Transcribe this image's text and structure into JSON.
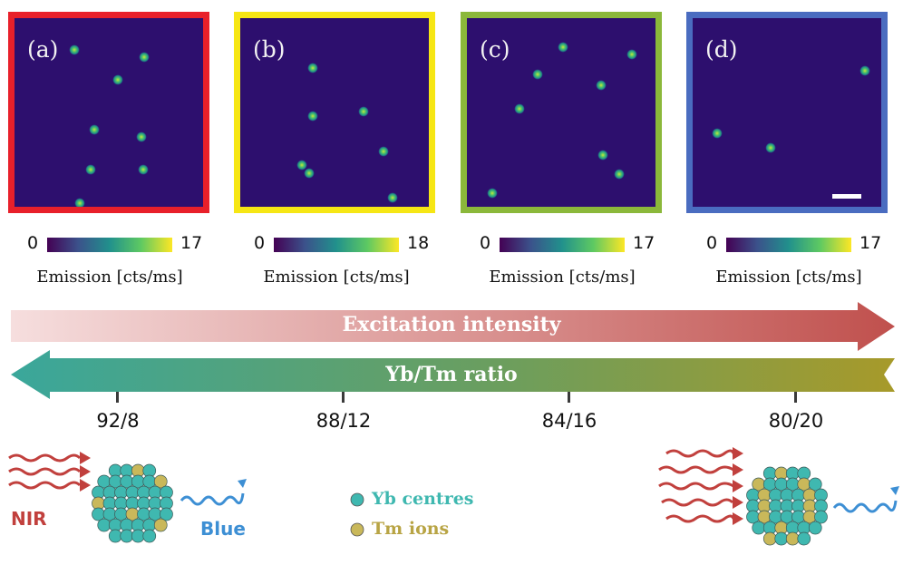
{
  "panels": [
    {
      "label": "(a)",
      "border": "#e8202a",
      "cb_min": "0",
      "cb_max": "17",
      "cb_title": "Emission [cts/ms]"
    },
    {
      "label": "(b)",
      "border": "#f6e614",
      "cb_min": "0",
      "cb_max": "18",
      "cb_title": "Emission [cts/ms]"
    },
    {
      "label": "(c)",
      "border": "#8bb83a",
      "cb_min": "0",
      "cb_max": "17",
      "cb_title": "Emission [cts/ms]"
    },
    {
      "label": "(d)",
      "border": "#4a6cc0",
      "cb_min": "0",
      "cb_max": "17",
      "cb_title": "Emission [cts/ms]"
    }
  ],
  "arrows": {
    "excitation": "Excitation intensity",
    "ratio": "Yb/Tm ratio"
  },
  "ratio_ticks": [
    "92/8",
    "88/12",
    "84/16",
    "80/20"
  ],
  "legend": {
    "yb": "Yb centres",
    "tm": "Tm ions",
    "nir": "NIR",
    "blue": "Blue"
  },
  "colors": {
    "yb": "#3fb8b0",
    "tm": "#c9b85a",
    "nir_arrow": "#c1403d",
    "blue_wave": "#3d8fd4",
    "excitation_arrow": "#c0504d",
    "ratio_arrow_start": "#3aa79b",
    "ratio_arrow_end": "#a79a2a"
  }
}
